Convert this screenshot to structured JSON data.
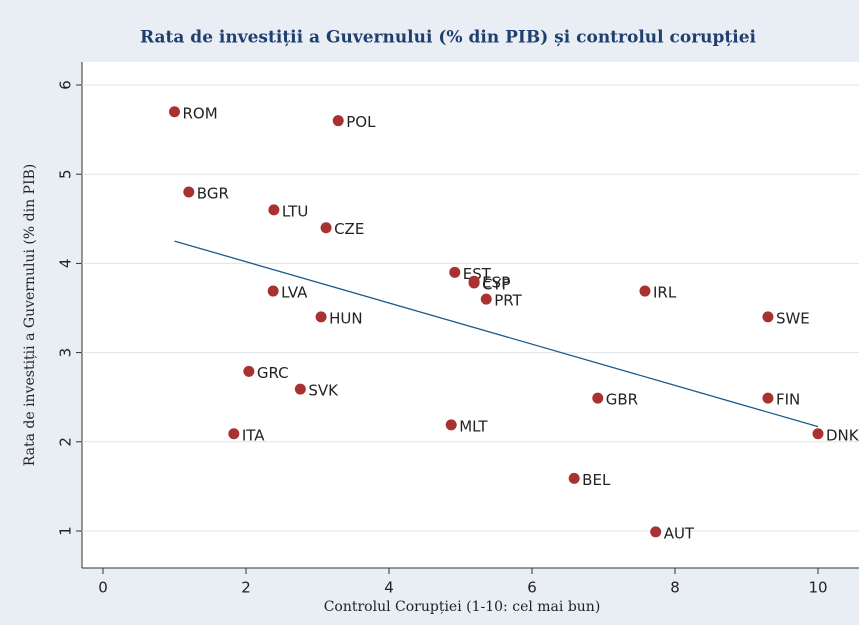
{
  "chart_data": {
    "type": "scatter",
    "title": "Rata de investiții a Guvernului (% din PIB) și controlul corupției",
    "x_label": "Controlul Corupției (1-10: cel mai bun)",
    "y_label": "Rata de investiții a Guvernului (% din PIB)",
    "labels": [
      "ROM",
      "POL",
      "BGR",
      "LTU",
      "CZE",
      "EST",
      "ESP",
      "CYP",
      "PRT",
      "LVA",
      "HUN",
      "IRL",
      "SWE",
      "GRC",
      "SVK",
      "GBR",
      "FIN",
      "ITA",
      "MLT",
      "DNK",
      "BEL",
      "AUT"
    ],
    "x": [
      1.0,
      3.29,
      1.2,
      2.39,
      3.12,
      4.92,
      5.19,
      5.19,
      5.36,
      2.38,
      3.05,
      7.58,
      9.3,
      2.04,
      2.76,
      6.92,
      9.3,
      1.83,
      4.87,
      10.0,
      6.59,
      7.73
    ],
    "y": [
      5.7,
      5.6,
      4.8,
      4.6,
      4.4,
      3.9,
      3.8,
      3.78,
      3.6,
      3.69,
      3.4,
      3.69,
      3.4,
      2.79,
      2.59,
      2.49,
      2.49,
      2.09,
      2.19,
      2.09,
      1.59,
      0.99
    ],
    "color": "#a83232",
    "fit_line": {
      "x": [
        1,
        10
      ],
      "y": [
        4.25,
        2.17
      ],
      "color": "#1f5a8a"
    },
    "xlim": [
      -0.3,
      10.3
    ],
    "ylim": [
      0.6,
      6.3
    ],
    "xticks": [
      0,
      2,
      4,
      6,
      8,
      10
    ],
    "yticks": [
      1,
      2,
      3,
      4,
      5,
      6
    ],
    "grid": true
  }
}
